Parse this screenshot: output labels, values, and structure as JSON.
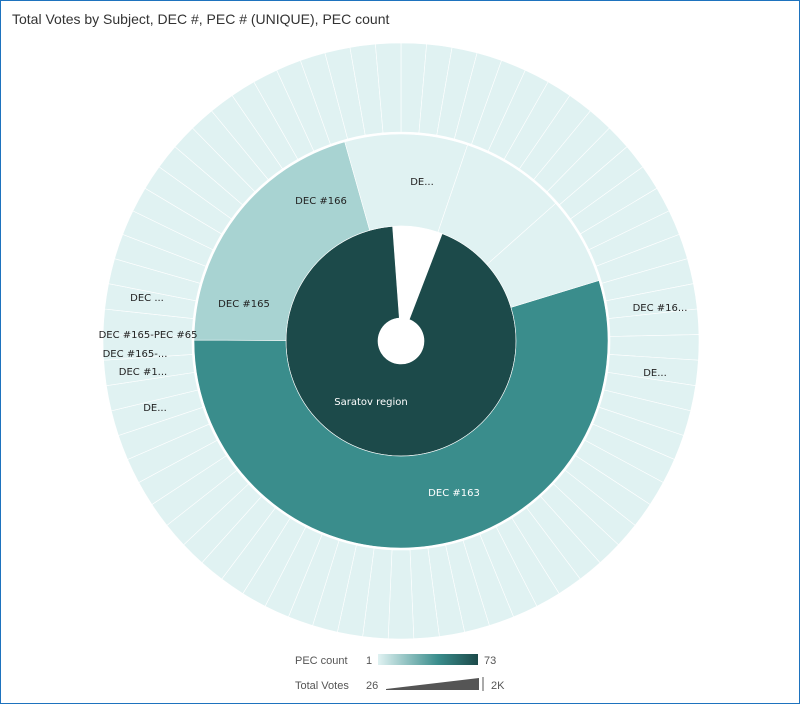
{
  "title": "Total Votes by Subject, DEC #, PEC # (UNIQUE), PEC count",
  "colors": {
    "light": "#e0f2f2",
    "mid_light": "#a8d3d2",
    "mid": "#3a8d8c",
    "dark": "#1c4a4a",
    "border": "#1e73be"
  },
  "chart_data": {
    "type": "sunburst",
    "title": "Total Votes by Subject, DEC #, PEC # (UNIQUE), PEC count",
    "root": {
      "label": "Saratov region",
      "pec_count": 73
    },
    "decs": [
      {
        "label": "DEC #163",
        "pec_count": 40
      },
      {
        "label": "DEC #165",
        "pec_count": 15
      },
      {
        "label": "DEC #166",
        "pec_count": 7
      },
      {
        "label": "DE...",
        "pec_count": 6
      },
      {
        "label": "",
        "pec_count": 5
      }
    ],
    "outer_labels": [
      "DEC #16...",
      "DE...",
      "DEC ...",
      "DEC #165-PEC #65",
      "DEC #165-...",
      "DEC #1...",
      "DE..."
    ],
    "legend": {
      "color_title": "PEC count",
      "color_min": "1",
      "color_max": "73",
      "size_title": "Total Votes",
      "size_min": "26",
      "size_max": "2K"
    }
  }
}
